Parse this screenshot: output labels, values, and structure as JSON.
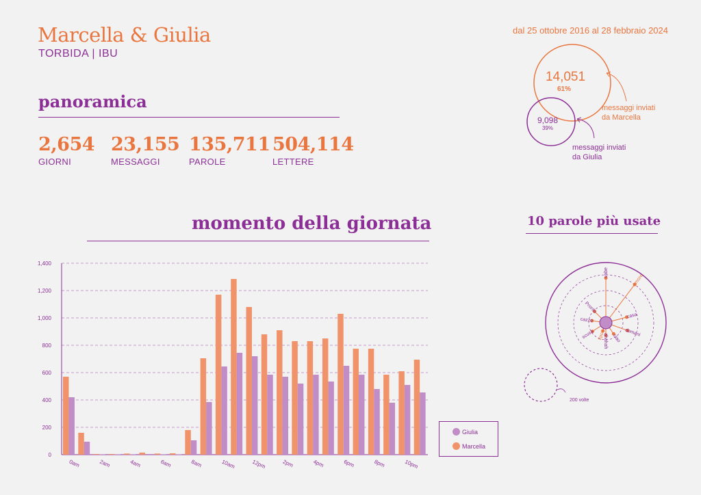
{
  "header": {
    "title": "Marcella & Giulia",
    "subtitle": "TORBIDA | IBU",
    "date_range": "dal 25 ottobre 2016 al 28 febbraio 2024"
  },
  "overview": {
    "title": "panoramica",
    "stats": [
      {
        "value": "2,654",
        "label": "GIORNI"
      },
      {
        "value": "23,155",
        "label": "MESSAGGI"
      },
      {
        "value": "135,711",
        "label": "PAROLE"
      },
      {
        "value": "504,114",
        "label": "LETTERE"
      }
    ]
  },
  "messages_split": {
    "marcella": {
      "value": "14,051",
      "percent": "61%",
      "label_line1": "messaggi inviati",
      "label_line2": "da Marcella"
    },
    "giulia": {
      "value": "9,098",
      "percent": "39%",
      "label_line1": "messaggi inviati",
      "label_line2": "da Giulia"
    }
  },
  "time_section": {
    "title": "momento della giornata"
  },
  "words_section": {
    "title": "10 parole più usate",
    "scale_label": "200 volte",
    "words": [
      {
        "word": "vabe",
        "angle": 0,
        "count": 560,
        "color": "#8b2f96"
      },
      {
        "word": "amore",
        "angle": 37,
        "count": 600,
        "color": "#e9753f"
      },
      {
        "word": "casa",
        "angle": 75,
        "count": 270,
        "color": "#8b2f96"
      },
      {
        "word": "domani",
        "angle": 110,
        "count": 290,
        "color": "#8b2f96"
      },
      {
        "word": "ciao",
        "angle": 145,
        "count": 170,
        "color": "#8b2f96"
      },
      {
        "word": "ahahah",
        "angle": 180,
        "count": 160,
        "color": "#8b2f96"
      },
      {
        "word": "tipo",
        "angle": 200,
        "count": 110,
        "color": "#e9753f"
      },
      {
        "word": "scusa",
        "angle": 237,
        "count": 200,
        "color": "#8b2f96"
      },
      {
        "word": "cazzo",
        "angle": 278,
        "count": 175,
        "color": "#8b2f96"
      },
      {
        "word": "Pronto",
        "angle": 315,
        "count": 200,
        "color": "#8b2f96"
      }
    ]
  },
  "colors": {
    "marcella": "#f0936b",
    "giulia": "#c08dc6",
    "accent_orange": "#e9753f",
    "accent_purple": "#8b2f96"
  },
  "chart_data": {
    "type": "bar",
    "categories": [
      "0am",
      "1am",
      "2am",
      "3am",
      "4am",
      "5am",
      "6am",
      "7am",
      "8am",
      "9am",
      "10am",
      "11am",
      "12pm",
      "1pm",
      "2pm",
      "3pm",
      "4pm",
      "5pm",
      "6pm",
      "7pm",
      "8pm",
      "9pm",
      "10pm",
      "11pm"
    ],
    "tick_labels": [
      "0am",
      "2am",
      "4am",
      "6am",
      "8am",
      "10am",
      "12pm",
      "2pm",
      "4pm",
      "6pm",
      "8pm",
      "10pm"
    ],
    "series": [
      {
        "name": "Marcella",
        "color": "#f0936b",
        "values": [
          570,
          160,
          5,
          5,
          8,
          15,
          8,
          10,
          180,
          705,
          1170,
          1285,
          1080,
          880,
          910,
          830,
          830,
          850,
          1030,
          775,
          775,
          585,
          610,
          695
        ]
      },
      {
        "name": "Giulia",
        "color": "#c08dc6",
        "values": [
          420,
          95,
          3,
          3,
          3,
          5,
          3,
          3,
          105,
          385,
          645,
          745,
          720,
          585,
          570,
          520,
          585,
          535,
          650,
          585,
          480,
          380,
          510,
          455
        ]
      }
    ],
    "ylim": [
      0,
      1400
    ],
    "yticks": [
      "0",
      "200",
      "400",
      "600",
      "800",
      "1,000",
      "1,200",
      "1,400"
    ],
    "grid": true,
    "legend": "bottom-right"
  }
}
